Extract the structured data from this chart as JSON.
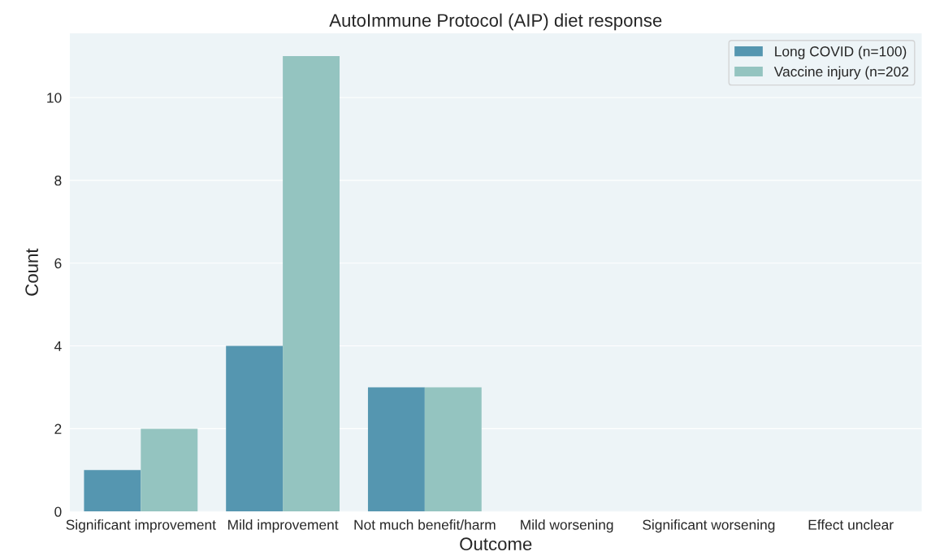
{
  "chart_data": {
    "type": "bar",
    "title": "AutoImmune Protocol (AIP) diet response",
    "xlabel": "Outcome",
    "ylabel": "Count",
    "categories": [
      "Significant improvement",
      "Mild improvement",
      "Not much benefit/harm",
      "Mild worsening",
      "Significant worsening",
      "Effect unclear"
    ],
    "series": [
      {
        "name": "Long COVID (n=100)",
        "color": "#5596b0",
        "values": [
          1,
          4,
          3,
          0,
          0,
          0
        ]
      },
      {
        "name": "Vaccine injury (n=202",
        "color": "#94c4c0",
        "values": [
          2,
          11,
          3,
          0,
          0,
          0
        ]
      }
    ],
    "ylim": [
      0,
      11.55
    ],
    "yticks": [
      0,
      2,
      4,
      6,
      8,
      10
    ],
    "grid": "y",
    "legend": "top right"
  }
}
